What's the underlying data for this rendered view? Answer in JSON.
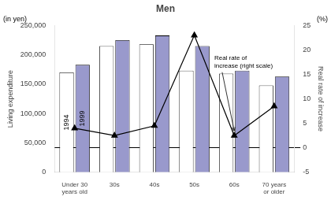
{
  "chart_data": {
    "type": "bar",
    "title": "Men",
    "ylabel": "Living expenditure",
    "y2label": "Real rate of increase",
    "units": {
      "y": "(in yen)",
      "y2": "(%)"
    },
    "categories": [
      "Under 30\nyears old",
      "30s",
      "40s",
      "50s",
      "60s",
      "70 years\nor older"
    ],
    "series": [
      {
        "name": "1994",
        "type": "bar",
        "color": "#ffffff",
        "values": [
          170000,
          215000,
          218000,
          173000,
          168000,
          148000
        ]
      },
      {
        "name": "1999",
        "type": "bar",
        "color": "#9999cc",
        "values": [
          183000,
          225000,
          233000,
          215000,
          173000,
          163000
        ]
      },
      {
        "type": "line",
        "axis": "y2",
        "color": "#000000",
        "marker": "triangle",
        "line_style": "solid",
        "values": [
          4.0,
          2.5,
          4.5,
          23.0,
          2.5,
          8.5
        ]
      }
    ],
    "annotations": [
      {
        "text": "Real rate of\nincrease (right scale)",
        "x": "60s",
        "y": 2.5
      }
    ],
    "ylim": [
      0,
      250000
    ],
    "yticks": [
      0,
      {
        "value": 50000,
        "label": "50,000"
      },
      {
        "value": 100000,
        "label": "100,000"
      },
      {
        "value": 150000,
        "label": "150,000"
      },
      {
        "value": 200000,
        "label": "200,000"
      },
      {
        "value": 250000,
        "label": "250,000"
      }
    ],
    "y2lim": [
      -5,
      25
    ],
    "y2ticks": [
      -5,
      0,
      5,
      10,
      15,
      20,
      25
    ],
    "grid": false
  }
}
